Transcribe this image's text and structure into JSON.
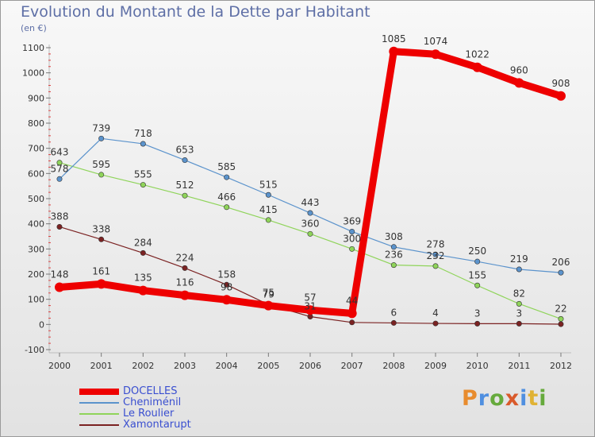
{
  "header": {
    "title": "Evolution du Montant de la Dette par Habitant",
    "unit": "(en €)"
  },
  "chart_data": {
    "type": "line",
    "x": [
      "2000",
      "2001",
      "2002",
      "2003",
      "2004",
      "2005",
      "2006",
      "2007",
      "2008",
      "2009",
      "2010",
      "2011",
      "2012"
    ],
    "ylim": [
      -100,
      1100
    ],
    "yticks": [
      -100,
      0,
      100,
      200,
      300,
      400,
      500,
      600,
      700,
      800,
      900,
      1000,
      1100
    ],
    "grid": false,
    "legend_position": "bottom-left",
    "series": [
      {
        "name": "Xamontarupt",
        "color": "#7b2222",
        "values": [
          388,
          338,
          284,
          224,
          158,
          79,
          31,
          8,
          6,
          4,
          3,
          3,
          1
        ],
        "labels": [
          "388",
          "338",
          "284",
          "224",
          "158",
          "79",
          "31",
          "",
          "6",
          "4",
          "3",
          "3",
          ""
        ]
      },
      {
        "name": "Le Roulier",
        "color": "#8fd45a",
        "values": [
          643,
          595,
          555,
          512,
          466,
          415,
          360,
          300,
          236,
          232,
          155,
          82,
          22
        ],
        "labels": [
          "643",
          "595",
          "555",
          "512",
          "466",
          "415",
          "360",
          "300",
          "236",
          "232",
          "155",
          "82",
          "22"
        ]
      },
      {
        "name": "Cheniménil",
        "color": "#5b93cc",
        "values": [
          578,
          739,
          718,
          653,
          585,
          515,
          443,
          369,
          308,
          278,
          250,
          219,
          206
        ],
        "labels": [
          "578",
          "739",
          "718",
          "653",
          "585",
          "515",
          "443",
          "369",
          "308",
          "278",
          "250",
          "219",
          "206"
        ]
      },
      {
        "name": "DOCELLES",
        "color": "#ee0000",
        "values": [
          148,
          161,
          135,
          116,
          98,
          75,
          57,
          44,
          1085,
          1074,
          1022,
          960,
          908
        ],
        "labels": [
          "148",
          "161",
          "135",
          "116",
          "98",
          "75",
          "57",
          "44",
          "1085",
          "1074",
          "1022",
          "960",
          "908"
        ]
      }
    ]
  },
  "legend": [
    {
      "label": "DOCELLES",
      "color": "#ee0000"
    },
    {
      "label": "Cheniménil",
      "color": "#5b93cc"
    },
    {
      "label": "Le Roulier",
      "color": "#8fd45a"
    },
    {
      "label": "Xamontarupt",
      "color": "#7b2222"
    }
  ],
  "logo": {
    "text": "Proxiti"
  }
}
